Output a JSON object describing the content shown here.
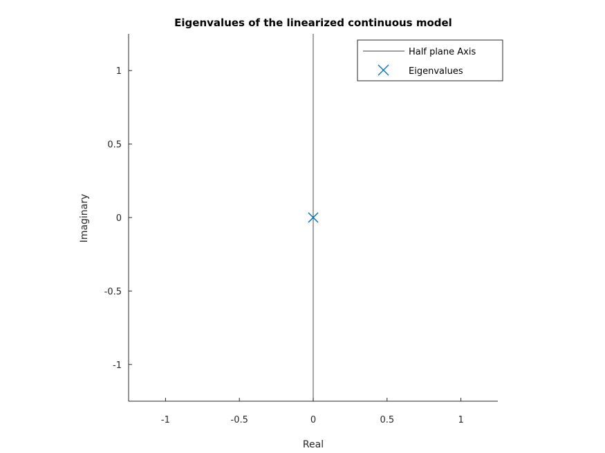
{
  "chart_data": {
    "type": "scatter",
    "title": "Eigenvalues of the linearized continuous model",
    "xlabel": "Real",
    "ylabel": "Imaginary",
    "xlim": [
      -1.25,
      1.25
    ],
    "ylim": [
      -1.25,
      1.25
    ],
    "xticks": [
      -1,
      -0.5,
      0,
      0.5,
      1
    ],
    "yticks": [
      -1,
      -0.5,
      0,
      0.5,
      1
    ],
    "xtick_labels": [
      "-1",
      "-0.5",
      "0",
      "0.5",
      "1"
    ],
    "ytick_labels": [
      "-1",
      "-0.5",
      "0",
      "0.5",
      "1"
    ],
    "grid": false,
    "legend_position": "top-right",
    "series": [
      {
        "name": "Half plane Axis",
        "kind": "line",
        "color": "#000000",
        "x": [
          0,
          0
        ],
        "y": [
          -1.25,
          1.25
        ]
      },
      {
        "name": "Eigenvalues",
        "kind": "marker",
        "marker": "x",
        "color": "#0072BD",
        "x": [
          0
        ],
        "y": [
          0
        ]
      }
    ]
  }
}
